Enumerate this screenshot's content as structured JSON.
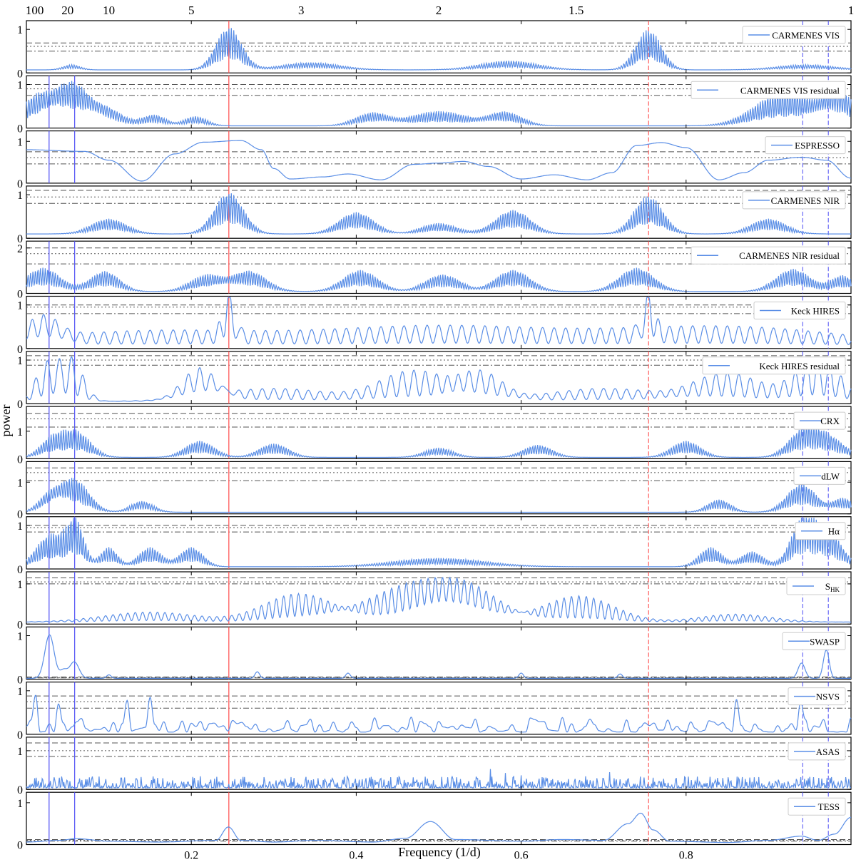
{
  "chart_data": {
    "type": "line",
    "xlabel": "Frequency (1/d)",
    "ylabel": "power",
    "xlim": [
      0.0,
      1.0
    ],
    "x_ticks": [
      "0.2",
      "0.4",
      "0.6",
      "0.8"
    ],
    "x_tick_values": [
      0.2,
      0.4,
      0.6,
      0.8
    ],
    "top_axis_ticks": [
      "100",
      "20",
      "10",
      "5",
      "3",
      "2",
      "1.5",
      "1"
    ],
    "top_axis_periods": [
      100,
      20,
      10,
      5,
      3,
      2,
      1.5,
      1
    ],
    "vertical_markers": {
      "planet_frequency": 0.2455,
      "planet_alias_frequency": 0.7545,
      "planet_color": "#ff5a5a",
      "rotation_frequencies": [
        0.0275,
        0.0585
      ],
      "rotation_alias_frequencies": [
        0.9415,
        0.9725
      ],
      "rotation_color": "#5b5bf5"
    },
    "line_color": "#5a8ee6",
    "panels": [
      {
        "legend": "CARMENES VIS",
        "ylim": [
          0,
          1.2
        ],
        "yticks": [
          "0",
          "1"
        ],
        "fap": [
          0.69,
          0.61,
          0.5
        ],
        "rotation_lines": "alias",
        "planet_lines": true,
        "peaks": [
          [
            0.2455,
            0.022,
            0.98,
            0.003
          ],
          [
            0.7545,
            0.022,
            0.93,
            0.003
          ],
          [
            0.345,
            0.05,
            0.17,
            0.003
          ],
          [
            0.585,
            0.05,
            0.21,
            0.003
          ],
          [
            0.055,
            0.015,
            0.12,
            0.003
          ],
          [
            0.945,
            0.05,
            0.12,
            0.003
          ]
        ],
        "base": 0.07,
        "style": "fringe"
      },
      {
        "legend": "CARMENES VIS residual",
        "ylim": [
          0,
          1.2
        ],
        "yticks": [
          "0",
          "1"
        ],
        "fap": [
          1.0,
          0.9,
          0.75
        ],
        "rotation_lines": "both",
        "planet_lines": true,
        "peaks": [
          [
            0.055,
            0.03,
            0.95,
            0.003
          ],
          [
            0.015,
            0.03,
            0.7,
            0.003
          ],
          [
            0.095,
            0.03,
            0.4,
            0.003
          ],
          [
            0.155,
            0.02,
            0.25,
            0.003
          ],
          [
            0.205,
            0.02,
            0.22,
            0.003
          ],
          [
            0.42,
            0.03,
            0.3,
            0.003
          ],
          [
            0.5,
            0.05,
            0.34,
            0.003
          ],
          [
            0.58,
            0.03,
            0.32,
            0.003
          ],
          [
            0.92,
            0.05,
            0.8,
            0.003
          ],
          [
            0.985,
            0.03,
            0.75,
            0.003
          ]
        ],
        "base": 0.05,
        "style": "fringe"
      },
      {
        "legend": "ESPRESSO",
        "ylim": [
          0,
          1.25
        ],
        "yticks": [
          "0",
          "1"
        ],
        "fap": [
          0.75,
          0.61,
          0.46
        ],
        "rotation_lines": "both",
        "planet_lines": true,
        "smooth": [
          [
            0.0,
            0.8
          ],
          [
            0.07,
            0.76
          ],
          [
            0.1,
            0.55
          ],
          [
            0.14,
            0.05
          ],
          [
            0.18,
            0.7
          ],
          [
            0.215,
            0.98
          ],
          [
            0.26,
            1.02
          ],
          [
            0.285,
            0.8
          ],
          [
            0.3,
            0.35
          ],
          [
            0.32,
            0.1
          ],
          [
            0.36,
            0.15
          ],
          [
            0.39,
            0.22
          ],
          [
            0.43,
            0.08
          ],
          [
            0.47,
            0.45
          ],
          [
            0.5,
            0.48
          ],
          [
            0.53,
            0.52
          ],
          [
            0.56,
            0.4
          ],
          [
            0.6,
            0.1
          ],
          [
            0.64,
            0.2
          ],
          [
            0.68,
            0.08
          ],
          [
            0.71,
            0.25
          ],
          [
            0.74,
            0.9
          ],
          [
            0.77,
            0.97
          ],
          [
            0.8,
            0.85
          ],
          [
            0.84,
            0.08
          ],
          [
            0.87,
            0.25
          ],
          [
            0.9,
            0.55
          ],
          [
            0.94,
            0.62
          ],
          [
            0.97,
            0.55
          ],
          [
            1.0,
            0.12
          ]
        ]
      },
      {
        "legend": "CARMENES NIR",
        "ylim": [
          0,
          1.2
        ],
        "yticks": [
          "0",
          "1"
        ],
        "fap": [
          1.1,
          0.95,
          0.8
        ],
        "rotation_lines": "alias",
        "planet_lines": true,
        "peaks": [
          [
            0.2455,
            0.025,
            0.95,
            0.003
          ],
          [
            0.7545,
            0.025,
            0.88,
            0.003
          ],
          [
            0.4,
            0.03,
            0.5,
            0.003
          ],
          [
            0.59,
            0.03,
            0.55,
            0.003
          ],
          [
            0.1,
            0.03,
            0.35,
            0.003
          ],
          [
            0.9,
            0.03,
            0.35,
            0.003
          ],
          [
            0.5,
            0.03,
            0.25,
            0.003
          ]
        ],
        "base": 0.1,
        "style": "fringe"
      },
      {
        "legend": "CARMENES NIR residual",
        "ylim": [
          0,
          2.3
        ],
        "yticks": [
          "0",
          "2"
        ],
        "fap": [
          2.0,
          1.75,
          1.3
        ],
        "rotation_lines": "both",
        "planet_lines": true,
        "peaks": [
          [
            0.02,
            0.03,
            1.05,
            0.003
          ],
          [
            0.095,
            0.025,
            0.9,
            0.003
          ],
          [
            0.22,
            0.03,
            0.75,
            0.003
          ],
          [
            0.27,
            0.03,
            0.9,
            0.003
          ],
          [
            0.405,
            0.03,
            0.95,
            0.003
          ],
          [
            0.505,
            0.03,
            0.75,
            0.003
          ],
          [
            0.59,
            0.03,
            0.95,
            0.003
          ],
          [
            0.74,
            0.03,
            1.05,
            0.003
          ],
          [
            0.93,
            0.03,
            1.0,
            0.003
          ],
          [
            0.99,
            0.02,
            0.7,
            0.003
          ]
        ],
        "base": 0.08,
        "style": "fringe"
      },
      {
        "legend": "Keck HIRES",
        "ylim": [
          0,
          1.2
        ],
        "yticks": [
          "0",
          "1"
        ],
        "fap": [
          1.0,
          0.95,
          0.8
        ],
        "rotation_lines": "both",
        "planet_lines": true,
        "peaks": [
          [
            0.2455,
            0.01,
            0.98,
            0.014
          ],
          [
            0.7545,
            0.01,
            0.9,
            0.014
          ],
          [
            0.02,
            0.03,
            0.6,
            0.014
          ],
          [
            0.5,
            0.2,
            0.45,
            0.014
          ],
          [
            0.15,
            0.2,
            0.35,
            0.014
          ],
          [
            0.85,
            0.2,
            0.45,
            0.014
          ]
        ],
        "base": 0.05,
        "style": "oscill"
      },
      {
        "legend": "Keck HIRES residual",
        "ylim": [
          0,
          1.2
        ],
        "yticks": [
          "0",
          "1"
        ],
        "fap": [
          1.1,
          1.0,
          0.88
        ],
        "rotation_lines": "both",
        "planet_lines": true,
        "peaks": [
          [
            0.055,
            0.02,
            0.95,
            0.014
          ],
          [
            0.025,
            0.02,
            0.85,
            0.014
          ],
          [
            0.21,
            0.03,
            0.75,
            0.014
          ],
          [
            0.47,
            0.06,
            0.7,
            0.014
          ],
          [
            0.55,
            0.04,
            0.65,
            0.014
          ],
          [
            0.85,
            0.06,
            0.65,
            0.014
          ],
          [
            0.96,
            0.04,
            0.95,
            0.014
          ],
          [
            0.3,
            0.1,
            0.3,
            0.014
          ],
          [
            0.7,
            0.1,
            0.3,
            0.014
          ]
        ],
        "base": 0.05,
        "style": "oscill"
      },
      {
        "legend": "CRX",
        "ylim": [
          0,
          1.9
        ],
        "yticks": [
          "0",
          "1"
        ],
        "fap": [
          1.65,
          1.45,
          1.15
        ],
        "rotation_lines": "both",
        "planet_lines": true,
        "peaks": [
          [
            0.06,
            0.025,
            0.95,
            0.003
          ],
          [
            0.03,
            0.02,
            0.6,
            0.003
          ],
          [
            0.21,
            0.025,
            0.6,
            0.003
          ],
          [
            0.3,
            0.025,
            0.5,
            0.003
          ],
          [
            0.5,
            0.025,
            0.35,
            0.003
          ],
          [
            0.62,
            0.025,
            0.45,
            0.003
          ],
          [
            0.8,
            0.025,
            0.6,
            0.003
          ],
          [
            0.94,
            0.025,
            0.8,
            0.003
          ],
          [
            0.97,
            0.03,
            0.75,
            0.003
          ]
        ],
        "base": 0.05,
        "style": "fringe"
      },
      {
        "legend": "dLW",
        "ylim": [
          0,
          1.65
        ],
        "yticks": [
          "0",
          "1"
        ],
        "fap": [
          1.45,
          1.3,
          1.05
        ],
        "rotation_lines": "both",
        "planet_lines": true,
        "peaks": [
          [
            0.058,
            0.025,
            1.05,
            0.003
          ],
          [
            0.03,
            0.02,
            0.6,
            0.003
          ],
          [
            0.14,
            0.02,
            0.35,
            0.003
          ],
          [
            0.84,
            0.02,
            0.4,
            0.003
          ],
          [
            0.94,
            0.025,
            0.9,
            0.003
          ],
          [
            0.99,
            0.02,
            0.45,
            0.003
          ]
        ],
        "base": 0.05,
        "style": "fringe"
      },
      {
        "legend": "Hα",
        "ylim": [
          0,
          1.2
        ],
        "yticks": [
          "0",
          "1"
        ],
        "fap": [
          1.0,
          0.95,
          0.85
        ],
        "rotation_lines": "both",
        "planet_lines": true,
        "peaks": [
          [
            0.03,
            0.025,
            0.75,
            0.003
          ],
          [
            0.06,
            0.015,
            0.95,
            0.003
          ],
          [
            0.1,
            0.015,
            0.45,
            0.003
          ],
          [
            0.15,
            0.02,
            0.45,
            0.003
          ],
          [
            0.2,
            0.02,
            0.45,
            0.003
          ],
          [
            0.5,
            0.08,
            0.2,
            0.003
          ],
          [
            0.83,
            0.02,
            0.45,
            0.003
          ],
          [
            0.88,
            0.02,
            0.35,
            0.003
          ],
          [
            0.94,
            0.02,
            0.95,
            0.003
          ],
          [
            0.97,
            0.025,
            0.85,
            0.003
          ]
        ],
        "base": 0.05,
        "style": "fringe"
      },
      {
        "legend": "SHK",
        "legend_main": "S",
        "legend_sub": "HK",
        "ylim": [
          0,
          1.3
        ],
        "yticks": [
          "0",
          "1"
        ],
        "fap": [
          1.15,
          1.05,
          1.0
        ],
        "rotation_lines": "both",
        "planet_lines": true,
        "peaks": [
          [
            0.47,
            0.08,
            0.9,
            0.009
          ],
          [
            0.33,
            0.06,
            0.7,
            0.009
          ],
          [
            0.67,
            0.06,
            0.65,
            0.009
          ],
          [
            0.53,
            0.06,
            0.8,
            0.009
          ],
          [
            0.15,
            0.08,
            0.25,
            0.009
          ],
          [
            0.86,
            0.06,
            0.2,
            0.009
          ]
        ],
        "base": 0.05,
        "style": "oscill"
      },
      {
        "legend": "SWASP",
        "ylim": [
          0,
          1.2
        ],
        "yticks": [
          "0",
          "1"
        ],
        "fap": [
          0.05,
          0.04,
          0.03
        ],
        "rotation_lines": "both",
        "planet_lines": true,
        "spikes": [
          [
            0.028,
            0.008,
            1.0
          ],
          [
            0.058,
            0.008,
            0.38
          ],
          [
            0.045,
            0.006,
            0.18
          ],
          [
            0.94,
            0.006,
            0.35
          ],
          [
            0.97,
            0.005,
            0.65
          ],
          [
            0.28,
            0.004,
            0.15
          ],
          [
            0.39,
            0.004,
            0.12
          ],
          [
            0.6,
            0.004,
            0.12
          ],
          [
            0.72,
            0.004,
            0.1
          ],
          [
            0.1,
            0.004,
            0.08
          ]
        ],
        "base": 0.02
      },
      {
        "legend": "NSVS",
        "ylim": [
          0,
          1.2
        ],
        "yticks": [
          "0",
          "1"
        ],
        "fap": [
          0.88,
          0.75,
          0.6
        ],
        "rotation_lines": "both",
        "planet_lines": true,
        "noise": {
          "seed": 11,
          "amp": 0.35,
          "n": 180,
          "big": [
            [
              0.01,
              0.9
            ],
            [
              0.04,
              0.7
            ],
            [
              0.12,
              0.78
            ],
            [
              0.15,
              0.85
            ],
            [
              0.86,
              0.8
            ],
            [
              0.94,
              0.75
            ]
          ]
        }
      },
      {
        "legend": "ASAS",
        "ylim": [
          0,
          1.35
        ],
        "yticks": [
          "0",
          "1"
        ],
        "fap": [
          1.2,
          1.0,
          0.85
        ],
        "rotation_lines": "both",
        "planet_lines": true,
        "dense": {
          "seed": 7,
          "amp": 0.3,
          "n": 1100
        }
      },
      {
        "legend": "TESS",
        "ylim": [
          0,
          1.25
        ],
        "yticks": [
          "0",
          "1"
        ],
        "fap": [
          0.12,
          0.1,
          0.08
        ],
        "rotation_lines": "both",
        "planet_lines": true,
        "smooth": [
          [
            0.0,
            0.06
          ],
          [
            0.04,
            0.1
          ],
          [
            0.06,
            0.14
          ],
          [
            0.1,
            0.08
          ],
          [
            0.16,
            0.06
          ],
          [
            0.23,
            0.1
          ],
          [
            0.245,
            0.42
          ],
          [
            0.26,
            0.1
          ],
          [
            0.3,
            0.06
          ],
          [
            0.35,
            0.1
          ],
          [
            0.42,
            0.06
          ],
          [
            0.46,
            0.15
          ],
          [
            0.49,
            0.55
          ],
          [
            0.52,
            0.12
          ],
          [
            0.6,
            0.08
          ],
          [
            0.65,
            0.12
          ],
          [
            0.7,
            0.1
          ],
          [
            0.73,
            0.5
          ],
          [
            0.745,
            0.75
          ],
          [
            0.76,
            0.35
          ],
          [
            0.78,
            0.08
          ],
          [
            0.85,
            0.05
          ],
          [
            0.9,
            0.1
          ],
          [
            0.94,
            0.2
          ],
          [
            0.96,
            0.1
          ],
          [
            0.98,
            0.25
          ],
          [
            1.0,
            0.65
          ]
        ]
      }
    ]
  }
}
